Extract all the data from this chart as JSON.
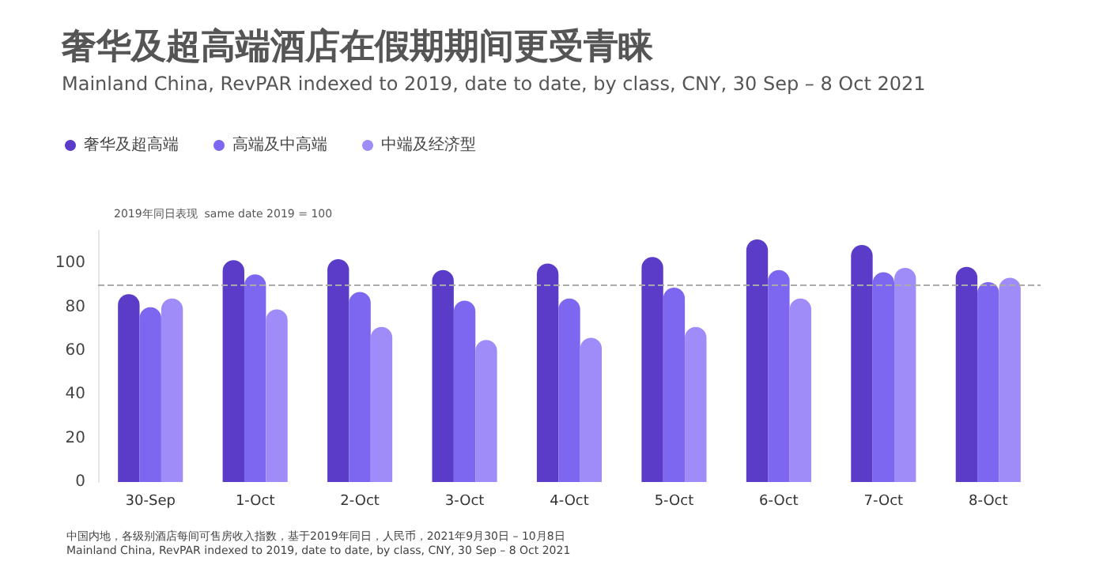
{
  "chart_data": {
    "type": "bar",
    "title": "奢华及超高端酒店在假期期间更受青睐",
    "subtitle": "Mainland China, RevPAR indexed to 2019, date to date, by class, CNY, 30 Sep – 8 Oct 2021",
    "categories": [
      "30-Sep",
      "1-Oct",
      "2-Oct",
      "3-Oct",
      "4-Oct",
      "5-Oct",
      "6-Oct",
      "7-Oct",
      "8-Oct"
    ],
    "series": [
      {
        "name": "奢华及超高端",
        "color": "#5a3cc8",
        "values": [
          86,
          101.5,
          102,
          97,
          100,
          103,
          111,
          108.5,
          98.5
        ]
      },
      {
        "name": "高端及中高端",
        "color": "#7d66f0",
        "values": [
          80,
          95,
          87,
          83,
          84,
          89,
          97,
          96,
          91.5
        ]
      },
      {
        "name": "中端及经济型",
        "color": "#a08cf8",
        "values": [
          84,
          79,
          71,
          65,
          66,
          71,
          84,
          98,
          93.5
        ]
      }
    ],
    "ylim": [
      0,
      115
    ],
    "yticks": [
      0,
      20,
      40,
      60,
      80,
      100
    ],
    "ref_lines": [
      {
        "axis": "y",
        "value": 90,
        "color": "#aaaaaa",
        "line_style": "dashed"
      }
    ],
    "grid": false,
    "legend": "top left",
    "annotations": [
      "2019年同日表现  same date 2019 = 100",
      "中国内地，各级别酒店每间可售房收入指数，基于2019年同日，人民币，2021年9月30日 – 10月8日",
      "Mainland China, RevPAR indexed to 2019, date to date, by class, CNY, 30 Sep – 8 Oct 2021"
    ]
  }
}
